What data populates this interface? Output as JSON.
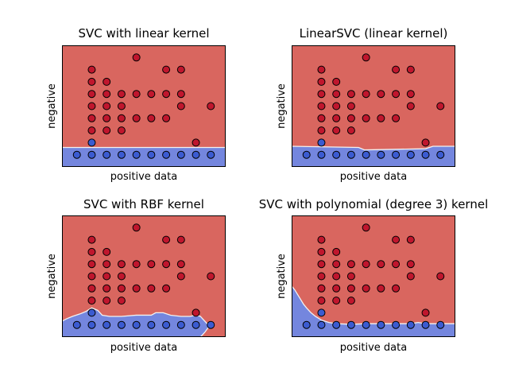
{
  "chart_data": [
    {
      "type": "scatter",
      "title": "SVC with linear kernel",
      "xlabel": "positive data",
      "ylabel": "negative",
      "xlim": [
        0,
        11
      ],
      "ylim": [
        0,
        10
      ],
      "colors": {
        "red_region": "#d9665f",
        "blue_region": "#7486de",
        "red_point": "#c0162d",
        "blue_point": "#3b5bd1",
        "boundary": "#f2f2f2"
      },
      "boundary_y": [
        [
          0,
          1.6
        ],
        [
          11,
          1.6
        ]
      ],
      "blue_points": [
        [
          1.0,
          1.0
        ],
        [
          2.0,
          1.0
        ],
        [
          3.0,
          1.0
        ],
        [
          4.0,
          1.0
        ],
        [
          5.0,
          1.0
        ],
        [
          6.0,
          1.0
        ],
        [
          7.0,
          1.0
        ],
        [
          8.0,
          1.0
        ],
        [
          9.0,
          1.0
        ],
        [
          10.0,
          1.0
        ],
        [
          2.0,
          2.0
        ]
      ],
      "red_points": [
        [
          5.0,
          9.0
        ],
        [
          2.0,
          8.0
        ],
        [
          7.0,
          8.0
        ],
        [
          8.0,
          8.0
        ],
        [
          2.0,
          7.0
        ],
        [
          3.0,
          7.0
        ],
        [
          2.0,
          6.0
        ],
        [
          3.0,
          6.0
        ],
        [
          4.0,
          6.0
        ],
        [
          5.0,
          6.0
        ],
        [
          6.0,
          6.0
        ],
        [
          7.0,
          6.0
        ],
        [
          8.0,
          6.0
        ],
        [
          2.0,
          5.0
        ],
        [
          3.0,
          5.0
        ],
        [
          4.0,
          5.0
        ],
        [
          8.0,
          5.0
        ],
        [
          10.0,
          5.0
        ],
        [
          2.0,
          4.0
        ],
        [
          3.0,
          4.0
        ],
        [
          4.0,
          4.0
        ],
        [
          5.0,
          4.0
        ],
        [
          6.0,
          4.0
        ],
        [
          7.0,
          4.0
        ],
        [
          2.0,
          3.0
        ],
        [
          3.0,
          3.0
        ],
        [
          4.0,
          3.0
        ],
        [
          9.0,
          2.0
        ]
      ]
    },
    {
      "type": "scatter",
      "title": "LinearSVC (linear kernel)",
      "xlabel": "positive data",
      "ylabel": "negative",
      "xlim": [
        0,
        11
      ],
      "ylim": [
        0,
        10
      ],
      "colors": {
        "red_region": "#d9665f",
        "blue_region": "#7486de",
        "red_point": "#c0162d",
        "blue_point": "#3b5bd1",
        "boundary": "#f2f2f2"
      },
      "boundary_y": [
        [
          0,
          1.7
        ],
        [
          4.5,
          1.6
        ],
        [
          4.9,
          1.4
        ],
        [
          9.0,
          1.5
        ],
        [
          9.5,
          1.7
        ],
        [
          11,
          1.7
        ]
      ],
      "blue_points": [
        [
          1.0,
          1.0
        ],
        [
          2.0,
          1.0
        ],
        [
          3.0,
          1.0
        ],
        [
          4.0,
          1.0
        ],
        [
          5.0,
          1.0
        ],
        [
          6.0,
          1.0
        ],
        [
          7.0,
          1.0
        ],
        [
          8.0,
          1.0
        ],
        [
          9.0,
          1.0
        ],
        [
          10.0,
          1.0
        ],
        [
          2.0,
          2.0
        ]
      ],
      "red_points": [
        [
          5.0,
          9.0
        ],
        [
          2.0,
          8.0
        ],
        [
          7.0,
          8.0
        ],
        [
          8.0,
          8.0
        ],
        [
          2.0,
          7.0
        ],
        [
          3.0,
          7.0
        ],
        [
          2.0,
          6.0
        ],
        [
          3.0,
          6.0
        ],
        [
          4.0,
          6.0
        ],
        [
          5.0,
          6.0
        ],
        [
          6.0,
          6.0
        ],
        [
          7.0,
          6.0
        ],
        [
          8.0,
          6.0
        ],
        [
          2.0,
          5.0
        ],
        [
          3.0,
          5.0
        ],
        [
          4.0,
          5.0
        ],
        [
          8.0,
          5.0
        ],
        [
          10.0,
          5.0
        ],
        [
          2.0,
          4.0
        ],
        [
          3.0,
          4.0
        ],
        [
          4.0,
          4.0
        ],
        [
          5.0,
          4.0
        ],
        [
          6.0,
          4.0
        ],
        [
          7.0,
          4.0
        ],
        [
          2.0,
          3.0
        ],
        [
          3.0,
          3.0
        ],
        [
          4.0,
          3.0
        ],
        [
          9.0,
          2.0
        ]
      ]
    },
    {
      "type": "scatter",
      "title": "SVC with RBF kernel",
      "xlabel": "positive data",
      "ylabel": "negative",
      "xlim": [
        0,
        11
      ],
      "ylim": [
        0,
        10
      ],
      "colors": {
        "red_region": "#d9665f",
        "blue_region": "#7486de",
        "red_point": "#c0162d",
        "blue_point": "#3b5bd1",
        "boundary": "#f2f2f2"
      },
      "boundary_y": [
        [
          0,
          1.3
        ],
        [
          0.3,
          1.5
        ],
        [
          0.7,
          1.7
        ],
        [
          1.2,
          1.9
        ],
        [
          1.6,
          2.1
        ],
        [
          2.0,
          2.4
        ],
        [
          2.4,
          2.2
        ],
        [
          2.7,
          1.8
        ],
        [
          3.2,
          1.7
        ],
        [
          4.0,
          1.7
        ],
        [
          5.0,
          1.8
        ],
        [
          6.0,
          1.8
        ],
        [
          6.3,
          2.0
        ],
        [
          6.8,
          2.0
        ],
        [
          7.3,
          1.8
        ],
        [
          8.0,
          1.7
        ],
        [
          8.6,
          1.7
        ],
        [
          9.0,
          1.8
        ],
        [
          9.3,
          1.7
        ],
        [
          9.6,
          1.3
        ],
        [
          9.9,
          0.9
        ],
        [
          9.6,
          0.4
        ],
        [
          9.3,
          0.0
        ]
      ],
      "blue_points": [
        [
          1.0,
          1.0
        ],
        [
          2.0,
          1.0
        ],
        [
          3.0,
          1.0
        ],
        [
          4.0,
          1.0
        ],
        [
          5.0,
          1.0
        ],
        [
          6.0,
          1.0
        ],
        [
          7.0,
          1.0
        ],
        [
          8.0,
          1.0
        ],
        [
          9.0,
          1.0
        ],
        [
          10.0,
          1.0
        ],
        [
          2.0,
          2.0
        ]
      ],
      "red_points": [
        [
          5.0,
          9.0
        ],
        [
          2.0,
          8.0
        ],
        [
          7.0,
          8.0
        ],
        [
          8.0,
          8.0
        ],
        [
          2.0,
          7.0
        ],
        [
          3.0,
          7.0
        ],
        [
          2.0,
          6.0
        ],
        [
          3.0,
          6.0
        ],
        [
          4.0,
          6.0
        ],
        [
          5.0,
          6.0
        ],
        [
          6.0,
          6.0
        ],
        [
          7.0,
          6.0
        ],
        [
          8.0,
          6.0
        ],
        [
          2.0,
          5.0
        ],
        [
          3.0,
          5.0
        ],
        [
          4.0,
          5.0
        ],
        [
          8.0,
          5.0
        ],
        [
          10.0,
          5.0
        ],
        [
          2.0,
          4.0
        ],
        [
          3.0,
          4.0
        ],
        [
          4.0,
          4.0
        ],
        [
          5.0,
          4.0
        ],
        [
          6.0,
          4.0
        ],
        [
          7.0,
          4.0
        ],
        [
          2.0,
          3.0
        ],
        [
          3.0,
          3.0
        ],
        [
          4.0,
          3.0
        ],
        [
          9.0,
          2.0
        ]
      ]
    },
    {
      "type": "scatter",
      "title": "SVC with polynomial (degree 3) kernel",
      "xlabel": "positive data",
      "ylabel": "negative",
      "xlim": [
        0,
        11
      ],
      "ylim": [
        0,
        10
      ],
      "colors": {
        "red_region": "#d9665f",
        "blue_region": "#7486de",
        "red_point": "#c0162d",
        "blue_point": "#3b5bd1",
        "boundary": "#f2f2f2"
      },
      "boundary_y": [
        [
          0,
          4.2
        ],
        [
          0.2,
          3.9
        ],
        [
          0.4,
          3.5
        ],
        [
          0.6,
          3.1
        ],
        [
          0.8,
          2.7
        ],
        [
          1.0,
          2.4
        ],
        [
          1.3,
          2.0
        ],
        [
          1.6,
          1.7
        ],
        [
          2.0,
          1.4
        ],
        [
          2.5,
          1.2
        ],
        [
          3.0,
          1.1
        ],
        [
          4.0,
          1.05
        ],
        [
          5.0,
          1.1
        ],
        [
          6.0,
          1.1
        ],
        [
          7.0,
          1.1
        ],
        [
          8.0,
          1.1
        ],
        [
          8.5,
          1.2
        ],
        [
          9.0,
          1.1
        ],
        [
          10.0,
          1.1
        ],
        [
          11.0,
          1.1
        ]
      ],
      "blue_points": [
        [
          1.0,
          1.0
        ],
        [
          2.0,
          1.0
        ],
        [
          3.0,
          1.0
        ],
        [
          4.0,
          1.0
        ],
        [
          5.0,
          1.0
        ],
        [
          6.0,
          1.0
        ],
        [
          7.0,
          1.0
        ],
        [
          8.0,
          1.0
        ],
        [
          9.0,
          1.0
        ],
        [
          10.0,
          1.0
        ],
        [
          2.0,
          2.0
        ]
      ],
      "red_points": [
        [
          5.0,
          9.0
        ],
        [
          2.0,
          8.0
        ],
        [
          7.0,
          8.0
        ],
        [
          8.0,
          8.0
        ],
        [
          2.0,
          7.0
        ],
        [
          3.0,
          7.0
        ],
        [
          2.0,
          6.0
        ],
        [
          3.0,
          6.0
        ],
        [
          4.0,
          6.0
        ],
        [
          5.0,
          6.0
        ],
        [
          6.0,
          6.0
        ],
        [
          7.0,
          6.0
        ],
        [
          8.0,
          6.0
        ],
        [
          2.0,
          5.0
        ],
        [
          3.0,
          5.0
        ],
        [
          4.0,
          5.0
        ],
        [
          8.0,
          5.0
        ],
        [
          10.0,
          5.0
        ],
        [
          2.0,
          4.0
        ],
        [
          3.0,
          4.0
        ],
        [
          4.0,
          4.0
        ],
        [
          5.0,
          4.0
        ],
        [
          6.0,
          4.0
        ],
        [
          7.0,
          4.0
        ],
        [
          2.0,
          3.0
        ],
        [
          3.0,
          3.0
        ],
        [
          4.0,
          3.0
        ],
        [
          9.0,
          2.0
        ]
      ]
    }
  ]
}
